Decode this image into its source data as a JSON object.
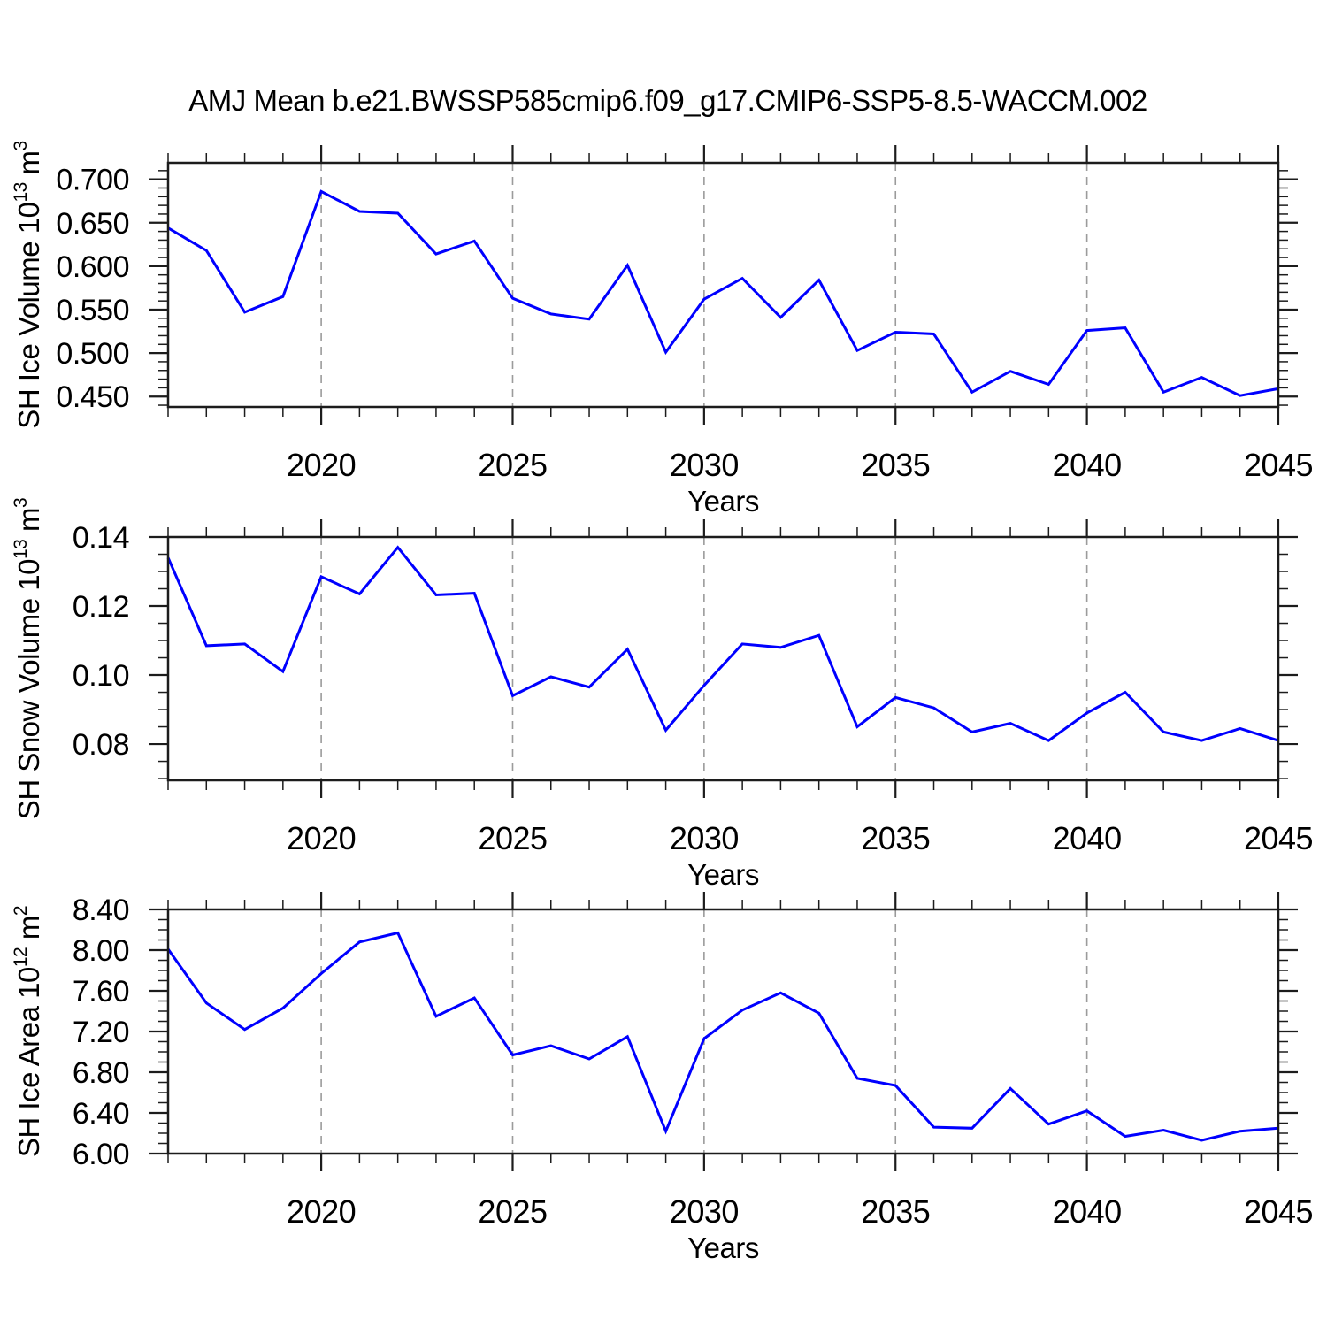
{
  "title": "AMJ Mean b.e21.BWSSP585cmip6.f09_g17.CMIP6-SSP5-8.5-WACCM.002",
  "colors": {
    "line": "#0000ff",
    "grid": "#9b9b9b",
    "axis": "#1c1c1c",
    "text": "#000000",
    "background": "#ffffff"
  },
  "x_axis": {
    "label": "Years",
    "xlim": [
      2016,
      2045
    ],
    "major_ticks": [
      2020,
      2025,
      2030,
      2035,
      2040,
      2045
    ],
    "major_tick_labels": [
      "2020",
      "2025",
      "2030",
      "2035",
      "2040",
      "2045"
    ],
    "minor_step": 1,
    "gridlines": [
      2020,
      2025,
      2030,
      2035,
      2040
    ]
  },
  "years": [
    2016,
    2017,
    2018,
    2019,
    2020,
    2021,
    2022,
    2023,
    2024,
    2025,
    2026,
    2027,
    2028,
    2029,
    2030,
    2031,
    2032,
    2033,
    2034,
    2035,
    2036,
    2037,
    2038,
    2039,
    2040,
    2041,
    2042,
    2043,
    2044,
    2045
  ],
  "chart_data": [
    {
      "name": "sh-ice-volume",
      "type": "line",
      "ylabel_text": "SH Ice Volume 10^13 m^3",
      "ylabel": [
        {
          "text": "SH Ice Volume 10",
          "sup": false
        },
        {
          "text": "13",
          "sup": true
        },
        {
          "text": " m",
          "sup": false
        },
        {
          "text": "3",
          "sup": true
        }
      ],
      "ylim": [
        0.438,
        0.719
      ],
      "ytick_values": [
        0.45,
        0.5,
        0.55,
        0.6,
        0.65,
        0.7
      ],
      "ytick_labels": [
        "0.450",
        "0.500",
        "0.550",
        "0.600",
        "0.650",
        "0.700"
      ],
      "yminor_step": 0.01,
      "values": [
        0.644,
        0.618,
        0.547,
        0.565,
        0.686,
        0.663,
        0.661,
        0.614,
        0.629,
        0.563,
        0.545,
        0.539,
        0.601,
        0.501,
        0.562,
        0.586,
        0.541,
        0.584,
        0.503,
        0.524,
        0.522,
        0.455,
        0.479,
        0.464,
        0.526,
        0.529,
        0.455,
        0.472,
        0.451,
        0.459
      ]
    },
    {
      "name": "sh-snow-volume",
      "type": "line",
      "ylabel_text": "SH Snow Volume 10^13 m^3",
      "ylabel": [
        {
          "text": "SH Snow Volume 10",
          "sup": false
        },
        {
          "text": "13",
          "sup": true
        },
        {
          "text": " m",
          "sup": false
        },
        {
          "text": "3",
          "sup": true
        }
      ],
      "ylim": [
        0.0695,
        0.14
      ],
      "ytick_values": [
        0.08,
        0.1,
        0.12,
        0.14
      ],
      "ytick_labels": [
        "0.08",
        "0.10",
        "0.12",
        "0.14"
      ],
      "yminor_step": 0.005,
      "values": [
        0.134,
        0.1085,
        0.109,
        0.101,
        0.1285,
        0.1235,
        0.137,
        0.1232,
        0.1237,
        0.094,
        0.0995,
        0.0965,
        0.1075,
        0.084,
        0.097,
        0.109,
        0.108,
        0.1115,
        0.085,
        0.0935,
        0.0905,
        0.0835,
        0.086,
        0.081,
        0.089,
        0.095,
        0.0835,
        0.081,
        0.0845,
        0.081
      ]
    },
    {
      "name": "sh-ice-area",
      "type": "line",
      "ylabel_text": "SH Ice Area 10^12 m^2",
      "ylabel": [
        {
          "text": "SH Ice Area 10",
          "sup": false
        },
        {
          "text": "12",
          "sup": true
        },
        {
          "text": " m",
          "sup": false
        },
        {
          "text": "2",
          "sup": true
        }
      ],
      "ylim": [
        6.0,
        8.4
      ],
      "ytick_values": [
        6.0,
        6.4,
        6.8,
        7.2,
        7.6,
        8.0,
        8.4
      ],
      "ytick_labels": [
        "6.00",
        "6.40",
        "6.80",
        "7.20",
        "7.60",
        "8.00",
        "8.40"
      ],
      "yminor_step": 0.1,
      "values": [
        8.01,
        7.48,
        7.22,
        7.43,
        7.77,
        8.08,
        8.17,
        7.35,
        7.53,
        6.97,
        7.06,
        6.93,
        7.15,
        6.22,
        7.13,
        7.41,
        7.58,
        7.38,
        6.74,
        6.67,
        6.26,
        6.25,
        6.64,
        6.29,
        6.42,
        6.17,
        6.23,
        6.13,
        6.22,
        6.25
      ]
    }
  ]
}
